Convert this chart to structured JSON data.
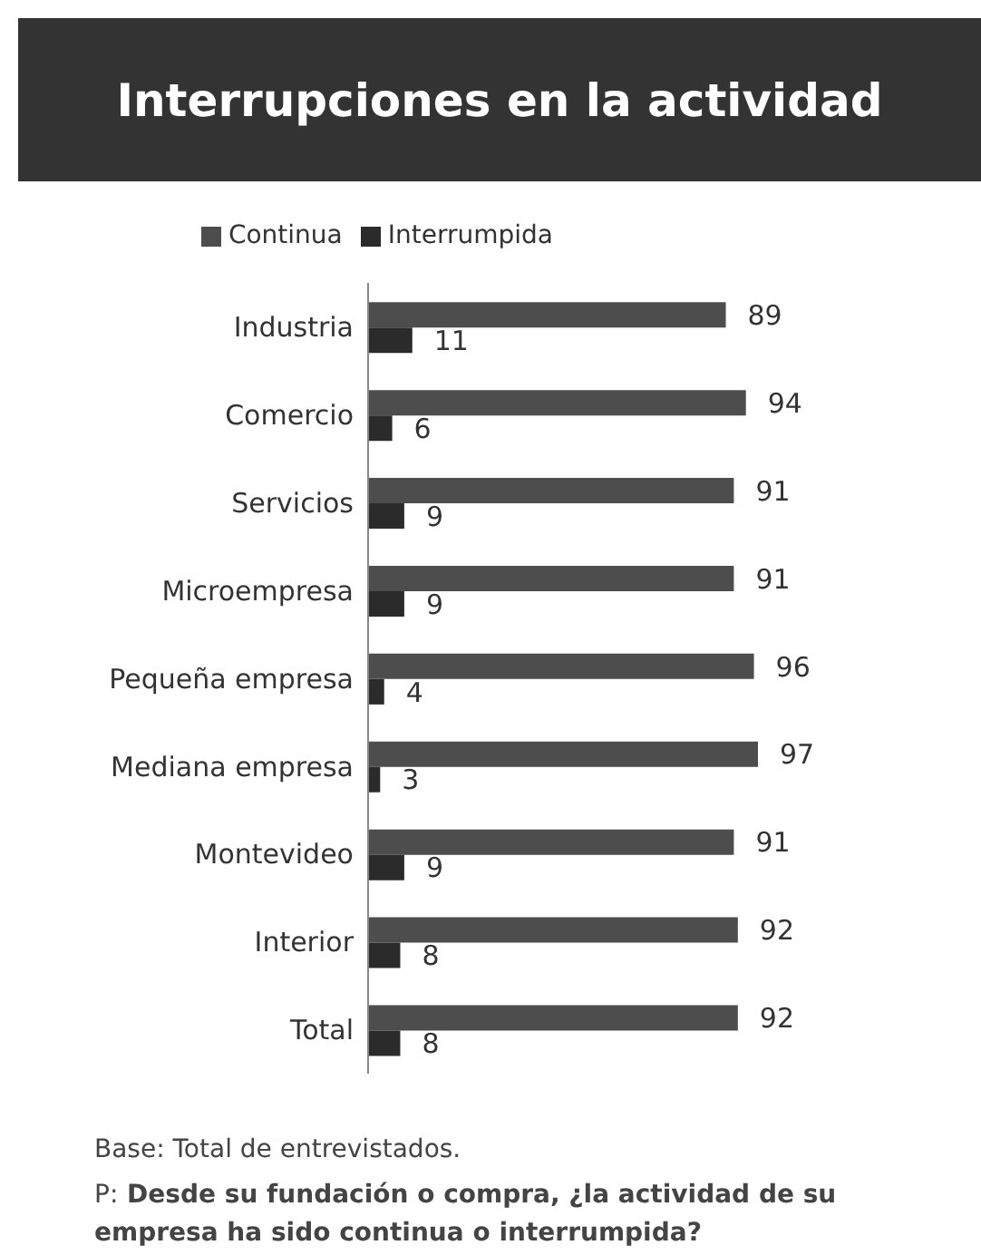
{
  "chart_data": {
    "type": "bar",
    "orientation": "horizontal",
    "title": "Interrupciones en la actividad",
    "categories": [
      "Industria",
      "Comercio",
      "Servicios",
      "Microempresa",
      "Pequeña empresa",
      "Mediana empresa",
      "Montevideo",
      "Interior",
      "Total"
    ],
    "series": [
      {
        "name": "Continua",
        "color": "#4d4d4d",
        "values": [
          89,
          94,
          91,
          91,
          96,
          97,
          91,
          92,
          92
        ]
      },
      {
        "name": "Interrumpida",
        "color": "#2b2b2b",
        "values": [
          11,
          6,
          9,
          9,
          4,
          3,
          9,
          8,
          8
        ]
      }
    ],
    "data_labels": true,
    "legend": "top",
    "tick_labels": "y",
    "annotations": [
      "Base: Total de entrevistados.",
      "P: Desde su fundación o compra, ¿la actividad de su empresa ha sido continua o interrumpida?"
    ]
  }
}
